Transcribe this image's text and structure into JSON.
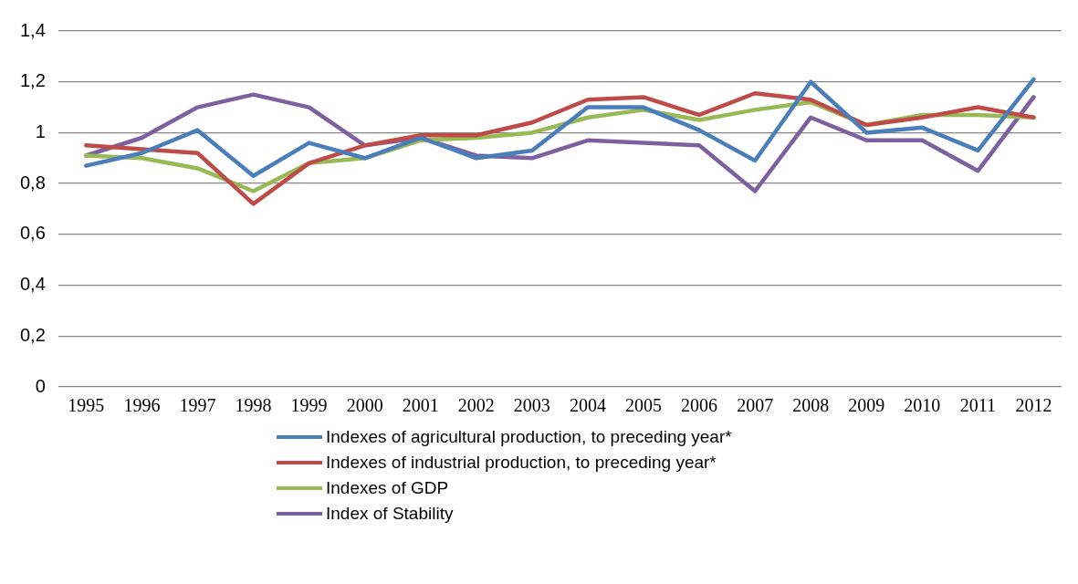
{
  "chart_data": {
    "type": "line",
    "categories": [
      "1995",
      "1996",
      "1997",
      "1998",
      "1999",
      "2000",
      "2001",
      "2002",
      "2003",
      "2004",
      "2005",
      "2006",
      "2007",
      "2008",
      "2009",
      "2010",
      "2011",
      "2012"
    ],
    "series": [
      {
        "name": "Indexes of agricultural production, to preceding year*",
        "color": "#4a7ebb",
        "values": [
          0.87,
          0.92,
          1.01,
          0.83,
          0.96,
          0.9,
          0.98,
          0.9,
          0.93,
          1.1,
          1.1,
          1.01,
          0.89,
          1.2,
          1.0,
          1.02,
          0.93,
          1.21
        ]
      },
      {
        "name": "Indexes of industrial production, to preceding year*",
        "color": "#be4b48",
        "values": [
          0.95,
          0.935,
          0.92,
          0.72,
          0.88,
          0.95,
          0.99,
          0.99,
          1.04,
          1.13,
          1.14,
          1.07,
          1.155,
          1.13,
          1.03,
          1.06,
          1.1,
          1.06
        ]
      },
      {
        "name": "Indexes of GDP",
        "color": "#98b954",
        "values": [
          0.91,
          0.9,
          0.86,
          0.77,
          0.88,
          0.9,
          0.97,
          0.98,
          1.0,
          1.06,
          1.09,
          1.05,
          1.09,
          1.12,
          1.03,
          1.07,
          1.07,
          1.06
        ]
      },
      {
        "name": "Index of Stability",
        "color": "#7d60a0",
        "values": [
          0.91,
          0.98,
          1.1,
          1.15,
          1.1,
          0.95,
          0.98,
          0.91,
          0.9,
          0.97,
          0.96,
          0.95,
          0.77,
          1.06,
          0.97,
          0.97,
          0.85,
          1.14
        ]
      }
    ],
    "ylim": [
      0,
      1.4
    ],
    "yticks": [
      {
        "value": 0,
        "label": "0"
      },
      {
        "value": 0.2,
        "label": "0,2"
      },
      {
        "value": 0.4,
        "label": "0,4"
      },
      {
        "value": 0.6,
        "label": "0,6"
      },
      {
        "value": 0.8,
        "label": "0,8"
      },
      {
        "value": 1,
        "label": "1"
      },
      {
        "value": 1.2,
        "label": "1,2"
      },
      {
        "value": 1.4,
        "label": "1,4"
      }
    ],
    "grid": "y",
    "legend": "bottom",
    "marker": "none",
    "line_style": "solid"
  }
}
